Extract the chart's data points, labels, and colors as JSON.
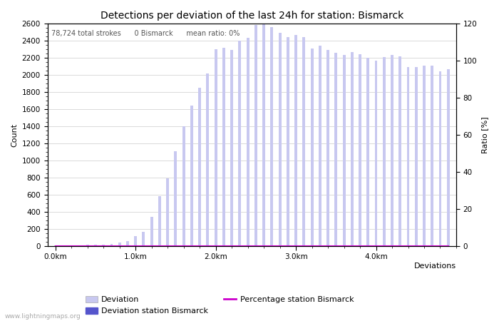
{
  "title": "Detections per deviation of the last 24h for station: Bismarck",
  "xlabel": "Deviations",
  "ylabel_left": "Count",
  "ylabel_right": "Ratio [%]",
  "annotation": "78,724 total strokes      0 Bismarck      mean ratio: 0%",
  "watermark": "www.lightningmaps.org",
  "x_tick_labels": [
    "0.0km",
    "1.0km",
    "2.0km",
    "3.0km",
    "4.0km"
  ],
  "x_tick_positions": [
    0,
    10,
    20,
    30,
    40
  ],
  "ylim_left": [
    0,
    2600
  ],
  "ylim_right": [
    0,
    120
  ],
  "yticks_left": [
    0,
    200,
    400,
    600,
    800,
    1000,
    1200,
    1400,
    1600,
    1800,
    2000,
    2200,
    2400,
    2600
  ],
  "yticks_right": [
    0,
    20,
    40,
    60,
    80,
    100,
    120
  ],
  "n_bars": 50,
  "deviation_counts": [
    5,
    8,
    10,
    12,
    15,
    18,
    20,
    25,
    40,
    60,
    120,
    165,
    340,
    580,
    790,
    1110,
    1400,
    1640,
    1850,
    2020,
    2300,
    2320,
    2290,
    2400,
    2430,
    2580,
    2590,
    2560,
    2490,
    2440,
    2470,
    2440,
    2310,
    2340,
    2290,
    2260,
    2230,
    2270,
    2240,
    2200,
    2170,
    2210,
    2230,
    2220,
    2090,
    2090,
    2110,
    2110,
    2040,
    2070
  ],
  "station_counts": [
    0,
    0,
    0,
    0,
    0,
    0,
    0,
    0,
    0,
    0,
    0,
    0,
    0,
    0,
    0,
    0,
    0,
    0,
    0,
    0,
    0,
    0,
    0,
    0,
    0,
    0,
    0,
    0,
    0,
    0,
    0,
    0,
    0,
    0,
    0,
    0,
    0,
    0,
    0,
    0,
    0,
    0,
    0,
    0,
    0,
    0,
    0,
    0,
    0,
    0
  ],
  "percentage_values": [
    0,
    0,
    0,
    0,
    0,
    0,
    0,
    0,
    0,
    0,
    0,
    0,
    0,
    0,
    0,
    0,
    0,
    0,
    0,
    0,
    0,
    0,
    0,
    0,
    0,
    0,
    0,
    0,
    0,
    0,
    0,
    0,
    0,
    0,
    0,
    0,
    0,
    0,
    0,
    0,
    0,
    0,
    0,
    0,
    0,
    0,
    0,
    0,
    0,
    0
  ],
  "bar_color_deviation": "#c8c8f0",
  "bar_color_station": "#5555cc",
  "line_color_percentage": "#cc00cc",
  "background_color": "#ffffff",
  "grid_color": "#cccccc",
  "title_fontsize": 10,
  "label_fontsize": 8,
  "tick_fontsize": 7.5,
  "legend_fontsize": 8,
  "annotation_fontsize": 7
}
